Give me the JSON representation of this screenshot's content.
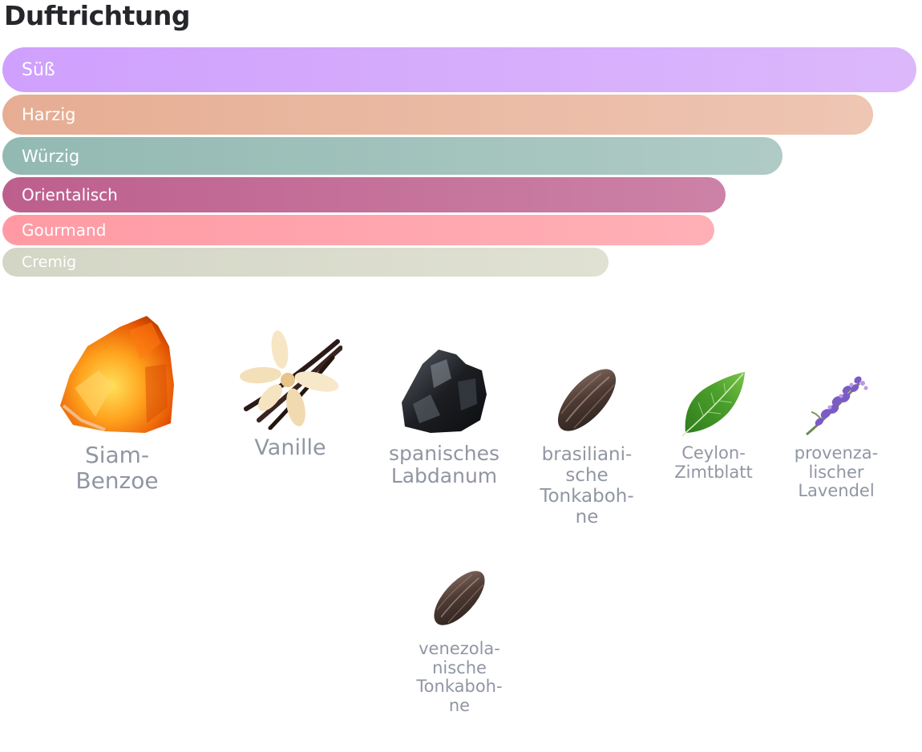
{
  "section": {
    "title": "Duftrichtung"
  },
  "scent_directions": [
    {
      "label": "Süß",
      "strength": 1.0,
      "color": "#d4a6fd"
    },
    {
      "label": "Harzig",
      "strength": 0.95,
      "color": "#ebbba5"
    },
    {
      "label": "Würzig",
      "strength": 0.85,
      "color": "#a3c3bd"
    },
    {
      "label": "Orientalisch",
      "strength": 0.79,
      "color": "#c4709a"
    },
    {
      "label": "Gourmand",
      "strength": 0.78,
      "color": "#ffa5ad"
    },
    {
      "label": "Cremig",
      "strength": 0.66,
      "color": "#dcddcd"
    }
  ],
  "ingredients": [
    {
      "name": "Siam-\nBenzoe",
      "icon": "amber-resin-icon"
    },
    {
      "name": "Vanille",
      "icon": "vanilla-flower-icon"
    },
    {
      "name": "spanisches\nLabdanum",
      "icon": "labdanum-stone-icon"
    },
    {
      "name": "brasiliani-\nsche\nTonkaboh-\nne",
      "icon": "tonka-bean-icon"
    },
    {
      "name": "Ceylon-\nZimtblatt",
      "icon": "cinnamon-leaf-icon"
    },
    {
      "name": "provenza-\nlischer\nLavendel",
      "icon": "lavender-icon"
    },
    {
      "name": "venezola-\nnische\nTonkaboh-\nne",
      "icon": "tonka-bean-icon"
    }
  ]
}
